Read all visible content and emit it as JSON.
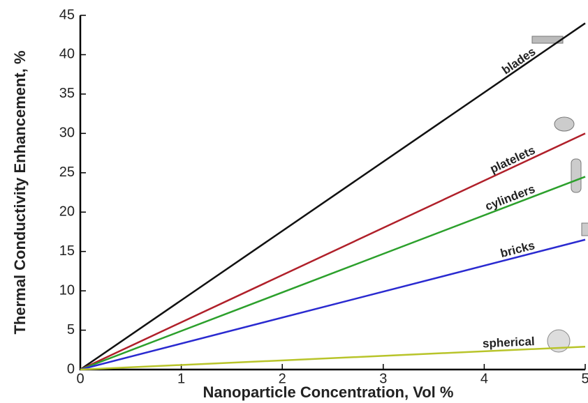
{
  "chart_data": {
    "type": "line",
    "x_label": "Nanoparticle Concentration, Vol %",
    "y_label": "Thermal Conductivity Enhancement, %",
    "x": [
      0,
      5
    ],
    "series": [
      {
        "name": "blades",
        "color": "#111111",
        "values": [
          0,
          44
        ]
      },
      {
        "name": "platelets",
        "color": "#b0202a",
        "values": [
          0,
          30
        ]
      },
      {
        "name": "cylinders",
        "color": "#2ca02c",
        "values": [
          0,
          24.5
        ]
      },
      {
        "name": "bricks",
        "color": "#2a2ad0",
        "values": [
          0,
          16.5
        ]
      },
      {
        "name": "spherical",
        "color": "#b8c42a",
        "values": [
          0,
          2.9
        ]
      }
    ],
    "xlim": [
      0,
      5
    ],
    "xticks": [
      0,
      1,
      2,
      3,
      4,
      5
    ],
    "ylim": [
      0,
      45
    ],
    "yticks": [
      0,
      5,
      10,
      15,
      20,
      25,
      30,
      35,
      40,
      45
    ]
  }
}
